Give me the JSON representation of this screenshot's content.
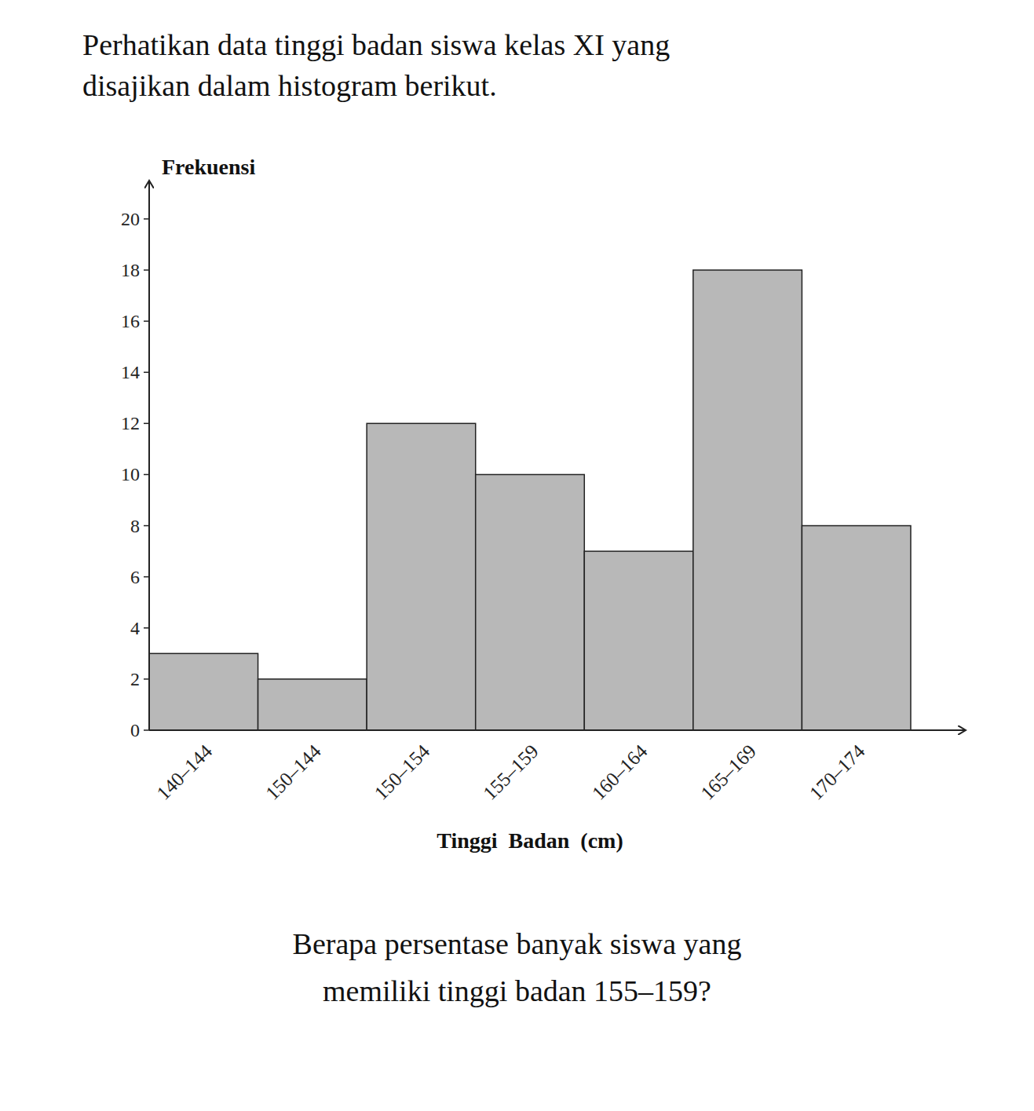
{
  "chart_data": {
    "type": "bar",
    "title": [
      "Perhatikan data tinggi badan siswa kelas XI yang",
      "disajikan dalam histogram berikut."
    ],
    "categories": [
      "140–144",
      "150–144",
      "150–154",
      "155–159",
      "160–164",
      "165–169",
      "170–174"
    ],
    "values": [
      3,
      2,
      12,
      10,
      7,
      18,
      8
    ],
    "color": "#b8b8b8",
    "xlabel": "Tinggi  Badan  (cm)",
    "ylabel": "Frekuensi",
    "ylim": [
      0,
      21.5
    ],
    "yticks": [
      0,
      2,
      4,
      6,
      8,
      10,
      12,
      14,
      16,
      18,
      20
    ],
    "annotations": [
      "Berapa persentase banyak siswa yang",
      "memiliki tinggi badan 155–159?"
    ],
    "grid": false
  }
}
